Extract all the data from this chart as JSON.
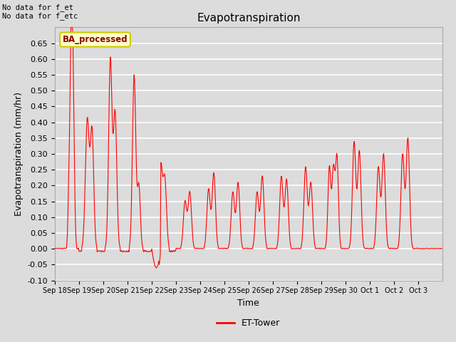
{
  "title": "Evapotranspiration",
  "ylabel": "Evapotranspiration (mm/hr)",
  "xlabel": "Time",
  "ylim": [
    -0.1,
    0.7
  ],
  "yticks": [
    -0.1,
    -0.05,
    0.0,
    0.05,
    0.1,
    0.15,
    0.2,
    0.25,
    0.3,
    0.35,
    0.4,
    0.45,
    0.5,
    0.55,
    0.6,
    0.65
  ],
  "line_color": "red",
  "line_width": 0.8,
  "legend_label": "ET-Tower",
  "legend_box_label": "BA_processed",
  "annotation_text": "No data for f_et\nNo data for f_etc",
  "background_color": "#dcdcdc",
  "plot_bg_color": "#dcdcdc",
  "grid_color": "white",
  "title_fontsize": 11,
  "axis_fontsize": 9,
  "tick_fontsize": 8,
  "xtick_labels": [
    "Sep 18",
    "Sep 19",
    "Sep 20",
    "Sep 21",
    "Sep 22",
    "Sep 23",
    "Sep 24",
    "Sep 25",
    "Sep 26",
    "Sep 27",
    "Sep 28",
    "Sep 29",
    "Sep 30",
    "Oct 1",
    "Oct 2",
    "Oct 3"
  ],
  "n_days": 16
}
